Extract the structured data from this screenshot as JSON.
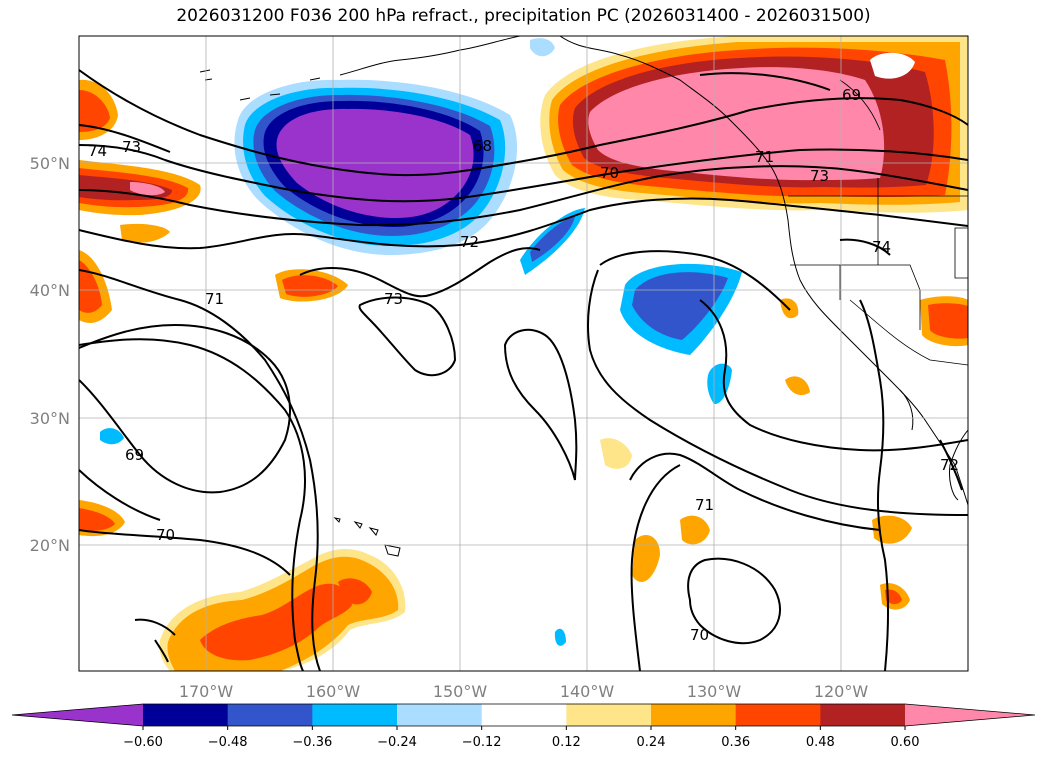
{
  "title": "2026031200 F036 200 hPa refract., precipitation PC (2026031400 - 2026031500)",
  "map": {
    "lat_labels": [
      "50°N",
      "40°N",
      "30°N",
      "20°N"
    ],
    "lon_labels": [
      "170°W",
      "160°W",
      "150°W",
      "140°W",
      "130°W",
      "120°W"
    ],
    "contour_labels": [
      "73",
      "68",
      "69",
      "70",
      "71",
      "73",
      "74",
      "72",
      "71",
      "73",
      "69",
      "70",
      "71",
      "70",
      "72",
      "74"
    ]
  },
  "colorbar": {
    "ticks": [
      "−0.60",
      "−0.48",
      "−0.36",
      "−0.24",
      "−0.12",
      "0.12",
      "0.24",
      "0.36",
      "0.48",
      "0.60"
    ],
    "colors": [
      "#9933cc",
      "#000099",
      "#3355cc",
      "#00bbff",
      "#aaddff",
      "#ffffff",
      "#ffe58a",
      "#ffa500",
      "#ff4500",
      "#b22222",
      "#ff88aa",
      "#ff88aa"
    ],
    "extend": "both"
  }
}
